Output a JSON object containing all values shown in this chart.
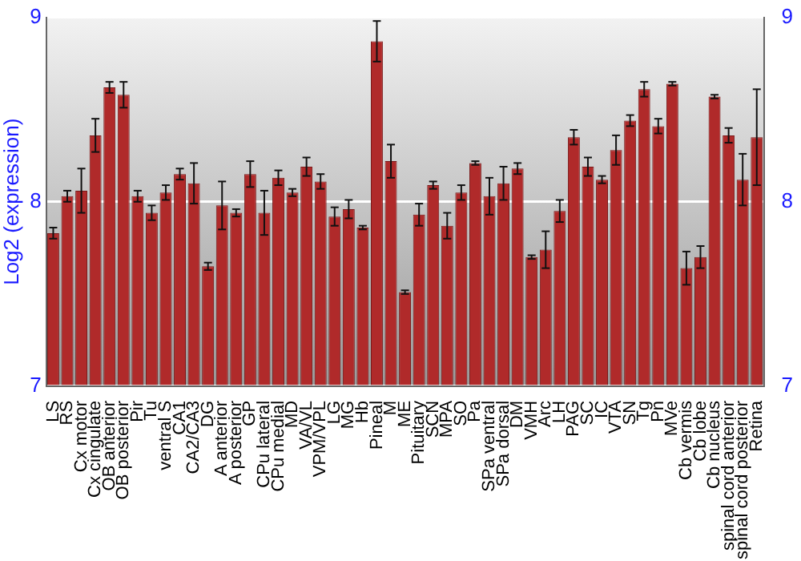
{
  "chart_data": {
    "type": "bar",
    "ylabel": "Log2 (expression)",
    "categories": [
      "LS",
      "RS",
      "Cx motor",
      "Cx cingulate",
      "OB anterior",
      "OB posterior",
      "Pir",
      "Tu",
      "ventral S",
      "CA1",
      "CA2/CA3",
      "DG",
      "A anterior",
      "A posterior",
      "GP",
      "CPu lateral",
      "CPu medial",
      "MD",
      "VA/VL",
      "VPM/VPL",
      "LG",
      "MG",
      "Hb",
      "Pineal",
      "M",
      "ME",
      "Pituitary",
      "SCN",
      "MPA",
      "SO",
      "Pa",
      "SPa ventral",
      "SPa dorsal",
      "DM",
      "VMH",
      "Arc",
      "LH",
      "PAG",
      "SC",
      "IC",
      "VTA",
      "SN",
      "Tg",
      "Pn",
      "MVe",
      "Cb vermis",
      "Cb lobe",
      "Cb nucleus",
      "spinal cord anterior",
      "spinal cord posterior",
      "Retina"
    ],
    "values": [
      7.83,
      8.03,
      8.06,
      8.36,
      8.62,
      8.58,
      8.03,
      7.94,
      8.05,
      8.15,
      8.1,
      7.65,
      7.98,
      7.94,
      8.15,
      7.94,
      8.13,
      8.05,
      8.19,
      8.11,
      7.92,
      7.96,
      7.86,
      8.87,
      8.22,
      7.51,
      7.93,
      8.09,
      7.87,
      8.05,
      8.21,
      8.03,
      8.1,
      8.18,
      7.7,
      7.74,
      7.95,
      8.35,
      8.19,
      8.12,
      8.28,
      8.44,
      8.61,
      8.41,
      8.64,
      7.64,
      7.7,
      8.57,
      8.36,
      8.12,
      8.35
    ],
    "errors": [
      0.03,
      0.03,
      0.12,
      0.09,
      0.03,
      0.07,
      0.03,
      0.04,
      0.04,
      0.03,
      0.11,
      0.02,
      0.13,
      0.02,
      0.07,
      0.12,
      0.04,
      0.02,
      0.05,
      0.04,
      0.05,
      0.05,
      0.01,
      0.11,
      0.09,
      0.01,
      0.06,
      0.02,
      0.07,
      0.04,
      0.01,
      0.1,
      0.09,
      0.03,
      0.01,
      0.1,
      0.06,
      0.04,
      0.05,
      0.02,
      0.08,
      0.03,
      0.04,
      0.04,
      0.01,
      0.09,
      0.06,
      0.01,
      0.04,
      0.14,
      0.26
    ],
    "color": "#b02a2a",
    "ylim": [
      7,
      9
    ],
    "yticks": [
      7,
      8,
      9
    ],
    "y2lim": [
      7,
      9
    ],
    "y2ticks": [
      7,
      8,
      9
    ],
    "grid": "y",
    "legend": false
  }
}
